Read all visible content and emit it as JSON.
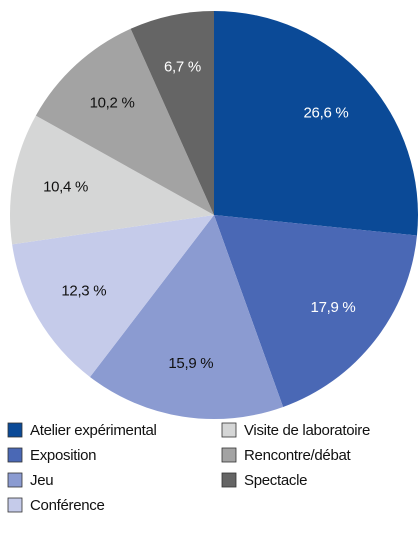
{
  "chart_data": {
    "type": "pie",
    "categories": [
      "Atelier expérimental",
      "Exposition",
      "Jeu",
      "Conférence",
      "Visite de laboratoire",
      "Rencontre/débat",
      "Spectacle"
    ],
    "values": [
      26.6,
      17.9,
      15.9,
      12.3,
      10.4,
      10.2,
      6.7
    ],
    "value_labels": [
      "26,6 %",
      "17,9 %",
      "15,9 %",
      "12,3 %",
      "10,4 %",
      "10,2 %",
      "6,7 %"
    ],
    "colors": [
      "#0b4a97",
      "#4a68b5",
      "#8b9bd1",
      "#c5cbea",
      "#d5d6d6",
      "#a3a3a3",
      "#656565"
    ]
  }
}
